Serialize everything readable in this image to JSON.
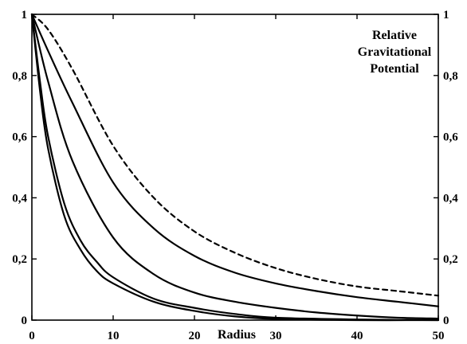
{
  "chart_data": {
    "type": "line",
    "title": "",
    "xlabel": "Radius",
    "ylabel": "",
    "annotation": [
      "Relative",
      "Gravitational",
      "Potential"
    ],
    "xlim": [
      0,
      50
    ],
    "ylim": [
      0,
      1
    ],
    "x_ticks": [
      0,
      10,
      20,
      30,
      40,
      50
    ],
    "x_tick_labels": [
      "0",
      "10",
      "20",
      "30",
      "40",
      "50"
    ],
    "y_ticks": [
      0,
      0.2,
      0.4,
      0.6,
      0.8,
      1
    ],
    "y_tick_labels_left": [
      "0",
      "0,2",
      "0,4",
      "0,6",
      "0,8",
      "1"
    ],
    "y_tick_labels_right": [
      "0",
      "0,2",
      "0,4",
      "0,6",
      "0,8",
      "1"
    ],
    "grid": false,
    "legend": "none",
    "series": [
      {
        "style": "dashed",
        "x": [
          0,
          2,
          5,
          10,
          15,
          20,
          25,
          30,
          35,
          40,
          45,
          50
        ],
        "y": [
          1.0,
          0.95,
          0.82,
          0.57,
          0.4,
          0.29,
          0.22,
          0.17,
          0.135,
          0.11,
          0.095,
          0.08
        ]
      },
      {
        "style": "solid",
        "x": [
          0,
          2,
          5,
          10,
          15,
          20,
          25,
          30,
          35,
          40,
          45,
          50
        ],
        "y": [
          1.0,
          0.88,
          0.71,
          0.45,
          0.3,
          0.21,
          0.155,
          0.12,
          0.095,
          0.075,
          0.06,
          0.045
        ]
      },
      {
        "style": "solid",
        "x": [
          0,
          2,
          5,
          10,
          15,
          20,
          25,
          30,
          35,
          40,
          45,
          50
        ],
        "y": [
          1.0,
          0.78,
          0.52,
          0.27,
          0.15,
          0.09,
          0.06,
          0.04,
          0.025,
          0.015,
          0.008,
          0.005
        ]
      },
      {
        "style": "solid",
        "x": [
          0,
          1,
          2,
          4,
          6,
          8,
          10,
          15,
          20,
          25,
          30,
          40,
          50
        ],
        "y": [
          1.0,
          0.78,
          0.6,
          0.38,
          0.26,
          0.19,
          0.14,
          0.07,
          0.04,
          0.02,
          0.008,
          0.002,
          0.0
        ]
      },
      {
        "style": "solid",
        "x": [
          0,
          1,
          2,
          4,
          6,
          8,
          10,
          15,
          20,
          25,
          30,
          40,
          50
        ],
        "y": [
          1.0,
          0.75,
          0.56,
          0.34,
          0.23,
          0.16,
          0.12,
          0.06,
          0.03,
          0.012,
          0.004,
          0.0,
          0.0
        ]
      }
    ]
  }
}
